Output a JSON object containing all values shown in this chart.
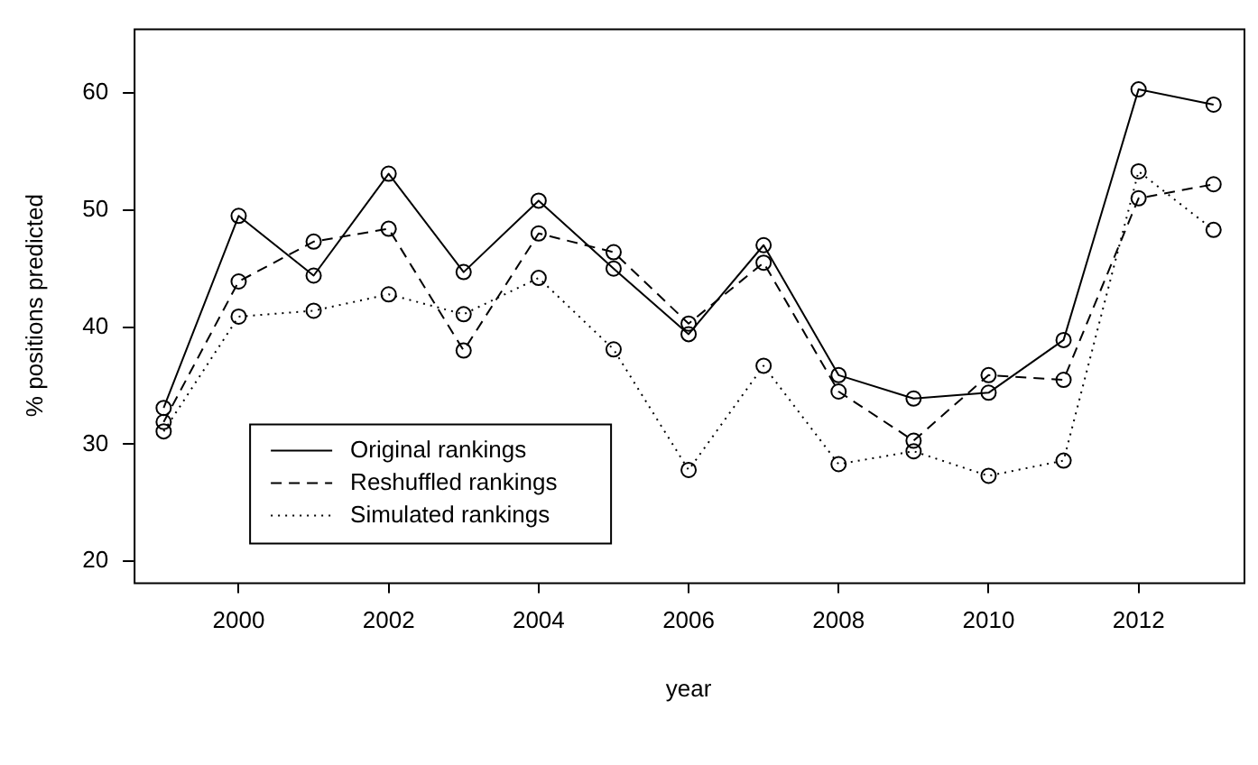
{
  "chart_data": {
    "type": "line",
    "xlabel": "year",
    "ylabel": "% positions predicted",
    "x": [
      1999,
      2000,
      2001,
      2002,
      2003,
      2004,
      2005,
      2006,
      2007,
      2008,
      2009,
      2010,
      2011,
      2012,
      2013
    ],
    "series": [
      {
        "name": "Original rankings",
        "color": "#000000",
        "line_style": "solid",
        "values": [
          33.1,
          49.5,
          44.4,
          53.1,
          44.7,
          50.8,
          45.0,
          39.4,
          47.0,
          35.9,
          33.9,
          34.4,
          38.9,
          60.3,
          59.0
        ]
      },
      {
        "name": "Reshuffled rankings",
        "color": "#000000",
        "line_style": "dashed",
        "values": [
          31.9,
          43.9,
          47.3,
          48.4,
          38.0,
          48.0,
          46.4,
          40.3,
          45.5,
          34.5,
          30.3,
          35.9,
          35.5,
          51.0,
          52.2
        ]
      },
      {
        "name": "Simulated rankings",
        "color": "#000000",
        "line_style": "dotted",
        "values": [
          31.1,
          40.9,
          41.4,
          42.8,
          41.1,
          44.2,
          38.1,
          27.8,
          36.7,
          28.3,
          29.4,
          27.3,
          28.6,
          53.3,
          48.3
        ]
      }
    ],
    "xlim": [
      1998.6,
      2013.4
    ],
    "xticks": [
      2000,
      2002,
      2004,
      2006,
      2008,
      2010,
      2012
    ],
    "ylim": [
      18.2,
      65.5
    ],
    "yticks": [
      20,
      30,
      40,
      50,
      60
    ],
    "grid": false,
    "legend": "bottom left",
    "marker": "circle"
  }
}
